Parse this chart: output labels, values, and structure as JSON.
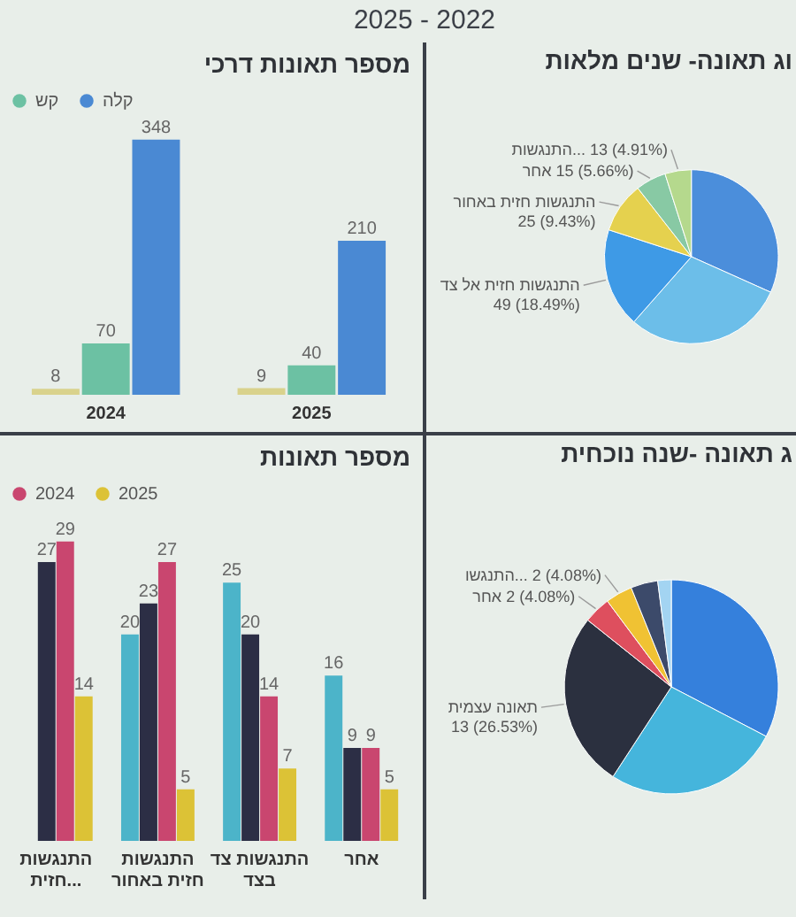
{
  "chart_data": [
    {
      "type": "other",
      "title": "2025 - 2022"
    },
    {
      "type": "bar",
      "title": "מספר תאונות דרכי",
      "categories": [
        "2024",
        "2025"
      ],
      "series": [
        {
          "color": "#d9d28c",
          "values": [
            8,
            9
          ]
        },
        {
          "name": "קש",
          "color": "#6cc1a3",
          "values": [
            70,
            40
          ]
        },
        {
          "name": "קלה",
          "color": "#4a89d3",
          "values": [
            348,
            210
          ]
        }
      ],
      "data_labels": true,
      "legend": "top left",
      "tick_labels": "x"
    },
    {
      "type": "pie",
      "title": "וג תאונה- שנים מלאות",
      "categories": [
        null,
        null,
        "התנגשות חזית אל צד",
        "התנגשות חזית באחור",
        "אחר",
        "התנגשות..."
      ],
      "values": [
        84,
        79,
        49,
        25,
        15,
        13
      ],
      "value_labels": [
        null,
        null,
        "49 (18.49%)",
        "25 (9.43%)",
        "15 (5.66%)",
        "13 (4.91%)"
      ],
      "colors": [
        "#4b8edb",
        "#6cbee9",
        "#3e9ae6",
        "#e5d14e",
        "#88c9a4",
        "#b5d98d"
      ]
    },
    {
      "type": "bar",
      "title": "מספר תאונות",
      "categories": [
        "התנגשות חזית...",
        "התנגשות חזית באחור",
        "התנגשות צד בצד",
        "אחר"
      ],
      "series": [
        {
          "color": "#4cb4c9",
          "values": [
            null,
            20,
            25,
            16
          ]
        },
        {
          "color": "#2c2e45",
          "values": [
            27,
            23,
            20,
            9
          ]
        },
        {
          "name": "2024",
          "color": "#c9466f",
          "values": [
            29,
            27,
            14,
            9
          ]
        },
        {
          "name": "2025",
          "color": "#dcc236",
          "values": [
            14,
            5,
            7,
            5
          ]
        }
      ],
      "data_labels": true,
      "legend": "top left",
      "tick_labels": "x"
    },
    {
      "type": "pie",
      "title": "ג תאונה -שנה נוכחית",
      "categories": [
        null,
        null,
        "תאונה עצמית",
        "אחר",
        "התנגשו...",
        null,
        null
      ],
      "values": [
        16,
        13,
        13,
        2,
        2,
        2,
        1
      ],
      "value_labels": [
        null,
        null,
        "13 (26.53%)",
        "2 (4.08%)",
        "2 (4.08%)",
        null,
        null
      ],
      "colors": [
        "#3580dc",
        "#45b5dc",
        "#2b303f",
        "#de4f5e",
        "#f0c233",
        "#3c4a6a",
        "#a3d4f2"
      ]
    }
  ]
}
